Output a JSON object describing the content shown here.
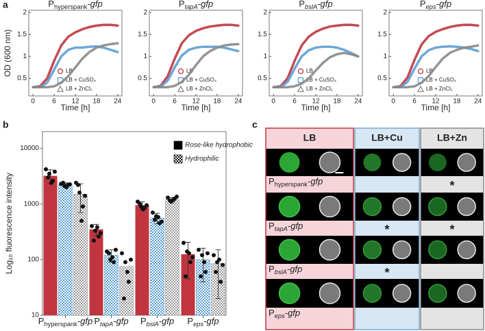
{
  "panel_labels": [
    "a",
    "b",
    "c"
  ],
  "chart_data": [
    {
      "type": "line",
      "title": {
        "prefix": "P",
        "sub": "hyperspank",
        "suffix": "-gfp",
        "sub_italic": false
      },
      "ylabel": "OD (600 nm)",
      "xlabel": "Time [h]",
      "x": [
        0,
        2,
        4,
        6,
        8,
        10,
        12,
        14,
        16,
        18,
        20,
        22,
        24
      ],
      "xlim": [
        -1.2,
        25.2
      ],
      "xticks": [
        0,
        6,
        12,
        18,
        24
      ],
      "ylim": [
        0.1,
        2.05
      ],
      "yticks": [
        0.5,
        1,
        1.5,
        2
      ],
      "series": [
        {
          "name": "LB",
          "color": "#c0353f",
          "marker": "circle",
          "values": [
            0.3,
            0.32,
            0.5,
            0.9,
            1.25,
            1.45,
            1.55,
            1.62,
            1.67,
            1.7,
            1.72,
            1.72,
            1.7
          ]
        },
        {
          "name": "LB + CuSO₄",
          "color": "#5b9fd4",
          "marker": "square",
          "values": [
            0.3,
            0.3,
            0.4,
            0.7,
            1.0,
            1.15,
            1.2,
            1.2,
            1.22,
            1.23,
            1.2,
            1.15,
            1.1
          ]
        },
        {
          "name": "LB + ZnCl₂",
          "color": "#888888",
          "marker": "triangle",
          "values": [
            0.3,
            0.3,
            0.3,
            0.32,
            0.4,
            0.55,
            0.75,
            0.95,
            1.1,
            1.2,
            1.25,
            1.28,
            1.3
          ]
        }
      ]
    },
    {
      "type": "line",
      "title": {
        "prefix": "P",
        "sub": "tapA",
        "suffix": "-gfp",
        "sub_italic": true
      },
      "xlabel": "Time [h]",
      "x": [
        0,
        2,
        4,
        6,
        8,
        10,
        12,
        14,
        16,
        18,
        20,
        22,
        24
      ],
      "xlim": [
        -1.2,
        25.2
      ],
      "xticks": [
        0,
        6,
        12,
        18,
        24
      ],
      "ylim": [
        0.1,
        2.05
      ],
      "yticks": [
        0.5,
        1,
        1.5,
        2
      ],
      "series": [
        {
          "name": "LB",
          "color": "#c0353f",
          "marker": "circle",
          "values": [
            0.3,
            0.33,
            0.55,
            0.95,
            1.3,
            1.48,
            1.58,
            1.64,
            1.68,
            1.7,
            1.72,
            1.72,
            1.7
          ]
        },
        {
          "name": "LB + CuSO₄",
          "color": "#5b9fd4",
          "marker": "square",
          "values": [
            0.3,
            0.31,
            0.45,
            0.75,
            1.02,
            1.15,
            1.2,
            1.22,
            1.22,
            1.22,
            1.2,
            1.16,
            1.12
          ]
        },
        {
          "name": "LB + ZnCl₂",
          "color": "#888888",
          "marker": "triangle",
          "values": [
            0.3,
            0.3,
            0.3,
            0.33,
            0.42,
            0.58,
            0.8,
            1.0,
            1.12,
            1.2,
            1.25,
            1.27,
            1.28
          ]
        }
      ]
    },
    {
      "type": "line",
      "title": {
        "prefix": "P",
        "sub": "bslA",
        "suffix": "-gfp",
        "sub_italic": true
      },
      "xlabel": "Time [h]",
      "x": [
        0,
        2,
        4,
        6,
        8,
        10,
        12,
        14,
        16,
        18,
        20,
        22,
        24
      ],
      "xlim": [
        -1.2,
        25.2
      ],
      "xticks": [
        0,
        6,
        12,
        18,
        24
      ],
      "ylim": [
        0.1,
        2.05
      ],
      "yticks": [
        0.5,
        1,
        1.5,
        2
      ],
      "series": [
        {
          "name": "LB",
          "color": "#c0353f",
          "marker": "circle",
          "values": [
            0.3,
            0.32,
            0.5,
            0.9,
            1.25,
            1.45,
            1.56,
            1.63,
            1.68,
            1.7,
            1.72,
            1.72,
            1.7
          ]
        },
        {
          "name": "LB + CuSO₄",
          "color": "#5b9fd4",
          "marker": "square",
          "values": [
            0.3,
            0.3,
            0.42,
            0.72,
            1.0,
            1.14,
            1.2,
            1.22,
            1.22,
            1.2,
            1.15,
            1.08,
            1.0
          ]
        },
        {
          "name": "LB + ZnCl₂",
          "color": "#888888",
          "marker": "triangle",
          "values": [
            0.3,
            0.3,
            0.3,
            0.32,
            0.38,
            0.5,
            0.68,
            0.85,
            0.98,
            1.05,
            1.08,
            1.05,
            1.0
          ]
        }
      ]
    },
    {
      "type": "line",
      "title": {
        "prefix": "P",
        "sub": "eps",
        "suffix": "-gfp",
        "sub_italic": true
      },
      "xlabel": "Time [h]",
      "x": [
        0,
        2,
        4,
        6,
        8,
        10,
        12,
        14,
        16,
        18,
        20,
        22,
        24
      ],
      "xlim": [
        -1.2,
        25.2
      ],
      "xticks": [
        0,
        6,
        12,
        18,
        24
      ],
      "ylim": [
        0.1,
        2.05
      ],
      "yticks": [
        0.5,
        1,
        1.5,
        2
      ],
      "series": [
        {
          "name": "LB",
          "color": "#c0353f",
          "marker": "circle",
          "values": [
            0.3,
            0.32,
            0.52,
            0.92,
            1.27,
            1.46,
            1.56,
            1.62,
            1.67,
            1.7,
            1.72,
            1.72,
            1.7
          ]
        },
        {
          "name": "LB + CuSO₄",
          "color": "#5b9fd4",
          "marker": "square",
          "values": [
            0.3,
            0.3,
            0.42,
            0.72,
            1.0,
            1.14,
            1.2,
            1.22,
            1.23,
            1.22,
            1.2,
            1.17,
            1.12
          ]
        },
        {
          "name": "LB + ZnCl₂",
          "color": "#888888",
          "marker": "triangle",
          "values": [
            0.3,
            0.3,
            0.3,
            0.32,
            0.4,
            0.55,
            0.76,
            0.95,
            1.08,
            1.15,
            1.2,
            1.22,
            1.25
          ]
        }
      ]
    },
    {
      "type": "bar",
      "log": true,
      "ylabel": "Log₁₀ fluorescence intensity",
      "categories": [
        {
          "prefix": "P",
          "sub": "hyperspank",
          "suffix": "-gfp",
          "sub_italic": false
        },
        {
          "prefix": "P",
          "sub": "tapA",
          "suffix": "-gfp",
          "sub_italic": true
        },
        {
          "prefix": "P",
          "sub": "bslA",
          "suffix": "-gfp",
          "sub_italic": true
        },
        {
          "prefix": "P",
          "sub": "eps",
          "suffix": "-gfp",
          "sub_italic": true
        }
      ],
      "ylim": [
        10,
        20000
      ],
      "yticks": [
        10,
        100,
        1000,
        10000
      ],
      "legend": [
        {
          "label": "Rose-like hydrophobic",
          "color": "#000000",
          "pattern": "solid"
        },
        {
          "label": "Hydrophilic",
          "color": "#000000",
          "pattern": "checker"
        }
      ],
      "series": [
        {
          "color": "#c0353f",
          "pattern": "solid",
          "values": [
            3200,
            350,
            950,
            125
          ],
          "errors": [
            900,
            80,
            150,
            80
          ],
          "points": [
            [
              4200,
              3500,
              2600,
              3000,
              2400,
              3800
            ],
            [
              400,
              330,
              260,
              220,
              380,
              300
            ],
            [
              1100,
              900,
              850,
              1000,
              800,
              950
            ],
            [
              200,
              140,
              90,
              50,
              130,
              110
            ]
          ]
        },
        {
          "color": "#5b9fd4",
          "pattern": "checker",
          "values": [
            2200,
            120,
            560,
            100
          ],
          "errors": [
            200,
            30,
            120,
            60
          ],
          "points": [
            [
              2300,
              2100,
              2200,
              2400,
              2000,
              2250
            ],
            [
              140,
              100,
              90,
              130,
              110,
              150
            ],
            [
              700,
              600,
              450,
              520,
              580,
              480
            ],
            [
              150,
              120,
              60,
              50,
              90,
              130
            ]
          ]
        },
        {
          "color": "#9a9a9a",
          "pattern": "checker",
          "values": [
            1500,
            75,
            1200,
            85
          ],
          "errors": [
            800,
            80,
            100,
            65
          ],
          "points": [
            [
              2400,
              1600,
              900,
              2200,
              500,
              1400
            ],
            [
              130,
              90,
              40,
              20,
              60,
              100
            ],
            [
              1300,
              1100,
              1250,
              1150,
              1200,
              1350
            ],
            [
              120,
              90,
              40,
              60,
              100,
              80
            ]
          ]
        }
      ]
    }
  ],
  "colony_grid": {
    "columns": [
      "LB",
      "LB+Cu",
      "LB+Zn"
    ],
    "rows": [
      {
        "label": {
          "prefix": "P",
          "sub": "hyperspank",
          "suffix": "-gfp",
          "sub_italic": false
        },
        "cells": [
          null,
          null,
          "*"
        ]
      },
      {
        "label": {
          "prefix": "P",
          "sub": "tapA",
          "suffix": "-gfp",
          "sub_italic": true
        },
        "cells": [
          null,
          "*",
          "*"
        ]
      },
      {
        "label": {
          "prefix": "P",
          "sub": "bslA",
          "suffix": "-gfp",
          "sub_italic": true
        },
        "cells": [
          null,
          "*",
          null
        ]
      },
      {
        "label": {
          "prefix": "P",
          "sub": "eps",
          "suffix": "-gfp",
          "sub_italic": true
        },
        "cells": [
          null,
          null,
          null
        ]
      }
    ]
  }
}
